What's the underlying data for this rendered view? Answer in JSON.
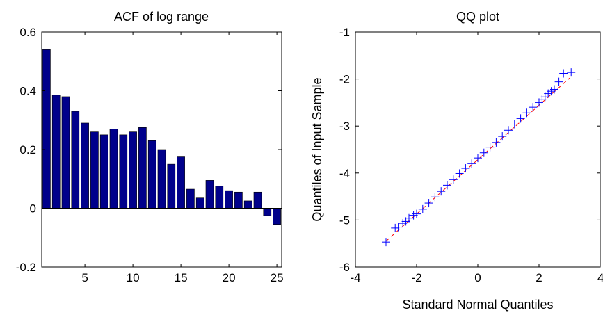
{
  "chart_data": [
    {
      "type": "bar",
      "title": "ACF of log range",
      "xlabel": "",
      "ylabel": "",
      "xlim": [
        0.5,
        25.5
      ],
      "ylim": [
        -0.2,
        0.6
      ],
      "x_ticks": [
        5,
        10,
        15,
        20,
        25
      ],
      "x_tick_labels": [
        "5",
        "10",
        "15",
        "20",
        "25"
      ],
      "y_ticks": [
        -0.2,
        0,
        0.2,
        0.4,
        0.6
      ],
      "y_tick_labels": [
        "-0.2",
        "0",
        "0.2",
        "0.4",
        "0.6"
      ],
      "grid": false,
      "bar_color": "#00008B",
      "categories": [
        1,
        2,
        3,
        4,
        5,
        6,
        7,
        8,
        9,
        10,
        11,
        12,
        13,
        14,
        15,
        16,
        17,
        18,
        19,
        20,
        21,
        22,
        23,
        24,
        25
      ],
      "values": [
        0.54,
        0.385,
        0.38,
        0.33,
        0.29,
        0.26,
        0.25,
        0.27,
        0.25,
        0.26,
        0.275,
        0.23,
        0.2,
        0.15,
        0.175,
        0.065,
        0.035,
        0.095,
        0.075,
        0.06,
        0.055,
        0.025,
        0.055,
        -0.025,
        -0.055
      ]
    },
    {
      "type": "scatter",
      "title": "QQ plot",
      "xlabel": "Standard Normal Quantiles",
      "ylabel": "Quantiles of Input Sample",
      "xlim": [
        -4,
        4
      ],
      "ylim": [
        -6,
        -1
      ],
      "x_ticks": [
        -4,
        -2,
        0,
        2,
        4
      ],
      "x_tick_labels": [
        "-4",
        "-2",
        "0",
        "2",
        "4"
      ],
      "y_ticks": [
        -6,
        -5,
        -4,
        -3,
        -2,
        -1
      ],
      "y_tick_labels": [
        "-6",
        "-5",
        "-4",
        "-3",
        "-2",
        "-1"
      ],
      "grid": false,
      "marker": "+",
      "marker_color": "#0000FF",
      "reference_line": {
        "style": "dashed",
        "color": "#FF0000",
        "x": [
          -3.0,
          3.0
        ],
        "y": [
          -5.45,
          -1.98
        ]
      },
      "series": [
        {
          "x": [
            -3.0,
            -2.7,
            -2.6,
            -2.45,
            -2.35,
            -2.25,
            -2.1,
            -2.0,
            -1.8,
            -1.6,
            -1.4,
            -1.2,
            -1.0,
            -0.8,
            -0.6,
            -0.4,
            -0.2,
            0.0,
            0.2,
            0.4,
            0.6,
            0.8,
            1.0,
            1.2,
            1.4,
            1.6,
            1.8,
            2.0,
            2.1,
            2.2,
            2.3,
            2.4,
            2.5,
            2.65,
            2.8,
            3.05
          ],
          "y": [
            -5.47,
            -5.17,
            -5.15,
            -5.07,
            -5.03,
            -4.96,
            -4.9,
            -4.87,
            -4.77,
            -4.64,
            -4.51,
            -4.39,
            -4.26,
            -4.14,
            -4.01,
            -3.9,
            -3.8,
            -3.68,
            -3.57,
            -3.45,
            -3.35,
            -3.22,
            -3.09,
            -2.96,
            -2.84,
            -2.72,
            -2.6,
            -2.5,
            -2.43,
            -2.38,
            -2.31,
            -2.26,
            -2.22,
            -2.06,
            -1.88,
            -1.86
          ]
        }
      ]
    }
  ]
}
